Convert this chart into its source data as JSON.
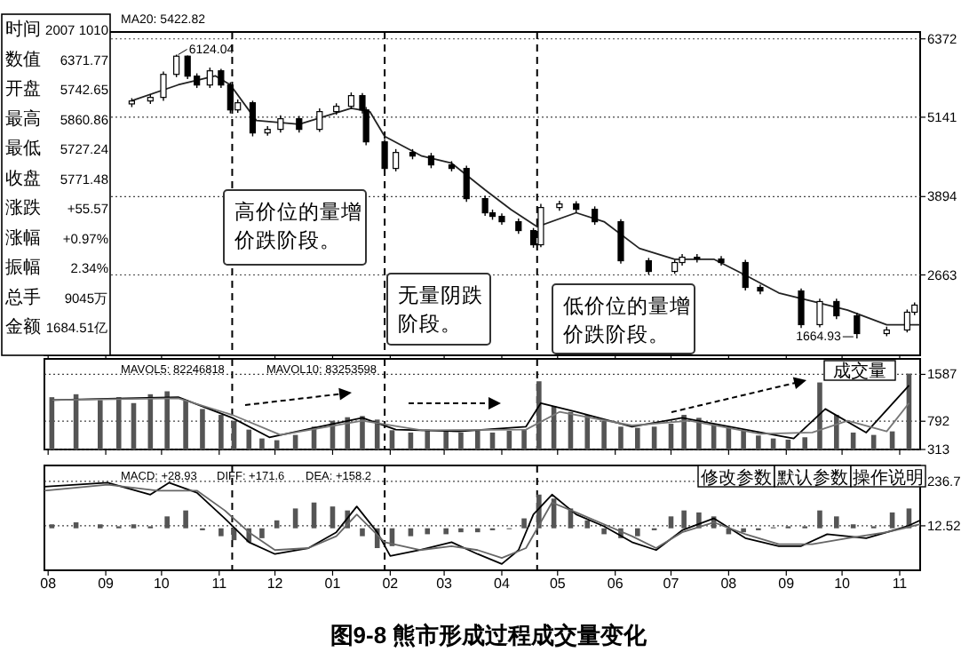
{
  "chart_data": [
    {
      "type": "candlestick",
      "tick_labels": "y",
      "grid": "y",
      "xlim": [
        "2007-07-30",
        "2008-11-12"
      ],
      "ylim": [
        1400,
        6480
      ],
      "yticks": [
        2663,
        3894,
        5141,
        6372
      ],
      "xticks": [
        {
          "value": "2007-08",
          "label": "08"
        },
        {
          "value": "2007-09",
          "label": "09"
        },
        {
          "value": "2007-10",
          "label": "10"
        },
        {
          "value": "2007-11",
          "label": "11"
        },
        {
          "value": "2007-12",
          "label": "12"
        },
        {
          "value": "2008-01",
          "label": "01"
        },
        {
          "value": "2008-02",
          "label": "02"
        },
        {
          "value": "2008-03",
          "label": "03"
        },
        {
          "value": "2008-04",
          "label": "04"
        },
        {
          "value": "2008-05",
          "label": "05"
        },
        {
          "value": "2008-06",
          "label": "06"
        },
        {
          "value": "2008-07",
          "label": "07"
        },
        {
          "value": "2008-08",
          "label": "08"
        },
        {
          "value": "2008-09",
          "label": "09"
        },
        {
          "value": "2008-10",
          "label": "10"
        },
        {
          "value": "2008-11",
          "label": "11"
        }
      ],
      "x": [
        "2007-09-15",
        "2007-09-25",
        "2007-10-02",
        "2007-10-09",
        "2007-10-15",
        "2007-10-20",
        "2007-10-27",
        "2007-11-02",
        "2007-11-07",
        "2007-11-11",
        "2007-11-19",
        "2007-11-27",
        "2007-12-04",
        "2007-12-14",
        "2007-12-25",
        "2008-01-03",
        "2008-01-11",
        "2008-01-17",
        "2008-01-19",
        "2008-01-29",
        "2008-02-04",
        "2008-02-13",
        "2008-02-23",
        "2008-03-05",
        "2008-03-13",
        "2008-03-23",
        "2008-03-27",
        "2008-04-01",
        "2008-04-10",
        "2008-04-18",
        "2008-04-22",
        "2008-05-02",
        "2008-05-11",
        "2008-05-21",
        "2008-06-04",
        "2008-06-19",
        "2008-07-03",
        "2008-07-07",
        "2008-07-15",
        "2008-07-28",
        "2008-08-10",
        "2008-08-18",
        "2008-09-09",
        "2008-09-19",
        "2008-09-28",
        "2008-10-09",
        "2008-10-25",
        "2008-11-05",
        "2008-11-09"
      ],
      "ohlc": [
        [
          5350,
          5440,
          5300,
          5396
        ],
        [
          5396,
          5500,
          5350,
          5452
        ],
        [
          5452,
          5860,
          5400,
          5814
        ],
        [
          5814,
          6124,
          5770,
          6100
        ],
        [
          6100,
          6110,
          5740,
          5786
        ],
        [
          5786,
          5830,
          5600,
          5647
        ],
        [
          5647,
          5920,
          5600,
          5870
        ],
        [
          5870,
          5900,
          5600,
          5647
        ],
        [
          5647,
          5690,
          5200,
          5256
        ],
        [
          5256,
          5420,
          5210,
          5368
        ],
        [
          5368,
          5400,
          4840,
          4894
        ],
        [
          4894,
          5000,
          4850,
          4950
        ],
        [
          4950,
          5170,
          4900,
          5117
        ],
        [
          5117,
          5160,
          4900,
          4950
        ],
        [
          4950,
          5280,
          4910,
          5229
        ],
        [
          5229,
          5360,
          5180,
          5312
        ],
        [
          5312,
          5530,
          5270,
          5480
        ],
        [
          5480,
          5522,
          5200,
          5256
        ],
        [
          5256,
          5300,
          4700,
          4754
        ],
        [
          4754,
          4800,
          4280,
          4336
        ],
        [
          4336,
          4640,
          4290,
          4587
        ],
        [
          4587,
          4640,
          4480,
          4531
        ],
        [
          4531,
          4580,
          4340,
          4392
        ],
        [
          4392,
          4450,
          4290,
          4336
        ],
        [
          4336,
          4380,
          3810,
          3862
        ],
        [
          3862,
          3910,
          3590,
          3639
        ],
        [
          3639,
          3690,
          3530,
          3583
        ],
        [
          3583,
          3630,
          3450,
          3499
        ],
        [
          3499,
          3550,
          3310,
          3360
        ],
        [
          3360,
          3400,
          3090,
          3137
        ],
        [
          3137,
          3780,
          3100,
          3722
        ],
        [
          3722,
          3830,
          3670,
          3778
        ],
        [
          3778,
          3820,
          3640,
          3694
        ],
        [
          3694,
          3740,
          3450,
          3499
        ],
        [
          3499,
          3540,
          2840,
          2886
        ],
        [
          2886,
          2930,
          2670,
          2718
        ],
        [
          2718,
          2900,
          2680,
          2858
        ],
        [
          2858,
          2990,
          2810,
          2941
        ],
        [
          2941,
          2990,
          2860,
          2913
        ],
        [
          2913,
          2960,
          2810,
          2858
        ],
        [
          2858,
          2900,
          2420,
          2467
        ],
        [
          2467,
          2510,
          2360,
          2411
        ],
        [
          2411,
          2450,
          1830,
          1882
        ],
        [
          1882,
          2290,
          1840,
          2245
        ],
        [
          2245,
          2290,
          1970,
          2021
        ],
        [
          2021,
          2070,
          1664,
          1742
        ],
        [
          1742,
          1850,
          1700,
          1798
        ],
        [
          1798,
          2120,
          1760,
          2077
        ],
        [
          2077,
          2230,
          2030,
          2189
        ]
      ],
      "series": [
        {
          "type": "line",
          "color": "#222222",
          "x": [
            "2007-09-15",
            "2007-10-10",
            "2007-10-30",
            "2007-11-07",
            "2007-11-21",
            "2007-12-14",
            "2008-01-11",
            "2008-01-21",
            "2008-01-29",
            "2008-02-18",
            "2008-03-05",
            "2008-03-23",
            "2008-04-06",
            "2008-04-20",
            "2008-05-11",
            "2008-05-26",
            "2008-06-14",
            "2008-07-03",
            "2008-07-24",
            "2008-08-10",
            "2008-08-28",
            "2008-09-15",
            "2008-10-04",
            "2008-10-25",
            "2008-11-12"
          ],
          "values": [
            5400,
            5650,
            5790,
            5650,
            5090,
            5030,
            5280,
            5230,
            4840,
            4530,
            4420,
            4000,
            3690,
            3420,
            3640,
            3500,
            3080,
            2910,
            2910,
            2660,
            2380,
            2250,
            2110,
            1880,
            1880
          ]
        }
      ],
      "ref_lines": [
        {
          "axis": "x",
          "value": "2007-11-08",
          "line_style": "dashed"
        },
        {
          "axis": "x",
          "value": "2008-01-29",
          "line_style": "dashed"
        },
        {
          "axis": "x",
          "value": "2008-04-20",
          "line_style": "dashed"
        }
      ],
      "annotations": [
        "MA20: 5422.82",
        "高价位的量增价跌阶段。",
        "无量阴跌阶段。",
        "低价位的量增价跌阶段。",
        {
          "text": "6124.04",
          "x": "2007-10-09",
          "y": 6124
        },
        {
          "text": "1664.93",
          "x": "2008-10-09",
          "y": 1664
        }
      ]
    },
    {
      "type": "bar",
      "tick_labels": "y",
      "grid": "y",
      "xlim": [
        "2007-07-30",
        "2008-11-12"
      ],
      "ylim": [
        313,
        1850
      ],
      "yticks": [
        313,
        792,
        1587
      ],
      "color": "#555555",
      "xticks": [
        {
          "value": "2007-08",
          "label": "08"
        },
        {
          "value": "2007-09",
          "label": "09"
        },
        {
          "value": "2007-10",
          "label": "10"
        },
        {
          "value": "2007-11",
          "label": "11"
        },
        {
          "value": "2007-12",
          "label": "12"
        },
        {
          "value": "2008-01",
          "label": "01"
        },
        {
          "value": "2008-02",
          "label": "02"
        },
        {
          "value": "2008-03",
          "label": "03"
        },
        {
          "value": "2008-04",
          "label": "04"
        },
        {
          "value": "2008-05",
          "label": "05"
        },
        {
          "value": "2008-06",
          "label": "06"
        },
        {
          "value": "2008-07",
          "label": "07"
        },
        {
          "value": "2008-08",
          "label": "08"
        },
        {
          "value": "2008-09",
          "label": "09"
        },
        {
          "value": "2008-10",
          "label": "10"
        },
        {
          "value": "2008-11",
          "label": "11"
        }
      ],
      "x": [
        "2007-08-03",
        "2007-08-16",
        "2007-08-29",
        "2007-09-08",
        "2007-09-16",
        "2007-09-25",
        "2007-10-04",
        "2007-10-14",
        "2007-10-23",
        "2007-11-02",
        "2007-11-09",
        "2007-11-17",
        "2007-11-24",
        "2007-12-02",
        "2007-12-12",
        "2007-12-22",
        "2008-01-01",
        "2008-01-09",
        "2008-01-17",
        "2008-01-25",
        "2008-02-02",
        "2008-02-12",
        "2008-02-21",
        "2008-03-02",
        "2008-03-10",
        "2008-03-19",
        "2008-03-27",
        "2008-04-05",
        "2008-04-13",
        "2008-04-21",
        "2008-04-29",
        "2008-05-08",
        "2008-05-17",
        "2008-05-26",
        "2008-06-04",
        "2008-06-13",
        "2008-06-22",
        "2008-07-01",
        "2008-07-08",
        "2008-07-16",
        "2008-07-24",
        "2008-08-01",
        "2008-08-09",
        "2008-08-17",
        "2008-08-25",
        "2008-09-02",
        "2008-09-11",
        "2008-09-19",
        "2008-09-28",
        "2008-10-07",
        "2008-10-18",
        "2008-10-28",
        "2008-11-06"
      ],
      "values": [
        1200,
        1250,
        1150,
        1200,
        1100,
        1250,
        1300,
        1150,
        1000,
        900,
        800,
        650,
        500,
        470,
        560,
        700,
        800,
        860,
        880,
        820,
        640,
        600,
        650,
        620,
        600,
        640,
        600,
        630,
        650,
        1470,
        1050,
        950,
        900,
        800,
        700,
        680,
        700,
        750,
        900,
        850,
        750,
        700,
        650,
        550,
        500,
        480,
        520,
        1450,
        900,
        600,
        560,
        620,
        1600
      ],
      "series": [
        {
          "type": "line",
          "color": "#000000",
          "x": [
            "2007-08-03",
            "2007-09-12",
            "2007-10-10",
            "2007-11-08",
            "2007-11-28",
            "2007-12-25",
            "2008-01-17",
            "2008-02-04",
            "2008-03-09",
            "2008-04-14",
            "2008-04-22",
            "2008-05-11",
            "2008-06-10",
            "2008-07-07",
            "2008-08-10",
            "2008-09-05",
            "2008-09-22",
            "2008-10-14",
            "2008-11-06"
          ],
          "values": [
            1150,
            1180,
            1200,
            850,
            520,
            700,
            850,
            650,
            620,
            700,
            1100,
            950,
            700,
            850,
            650,
            500,
            1000,
            600,
            1400
          ]
        },
        {
          "type": "line",
          "color": "#777777",
          "x": [
            "2007-08-03",
            "2007-10-10",
            "2007-11-08",
            "2007-12-04",
            "2008-01-17",
            "2008-02-18",
            "2008-04-14",
            "2008-05-02",
            "2008-06-10",
            "2008-07-11",
            "2008-08-18",
            "2008-09-15",
            "2008-10-04",
            "2008-10-25",
            "2008-11-06"
          ],
          "values": [
            1150,
            1180,
            900,
            560,
            800,
            640,
            650,
            950,
            720,
            800,
            580,
            600,
            800,
            620,
            1100
          ]
        }
      ],
      "ref_lines": [
        {
          "axis": "x",
          "value": "2007-11-08",
          "line_style": "dashed"
        },
        {
          "axis": "x",
          "value": "2008-01-29",
          "line_style": "dashed"
        },
        {
          "axis": "x",
          "value": "2008-04-20",
          "line_style": "dashed"
        }
      ],
      "annotations": [
        "MAVOL5: 82246818",
        "MAVOL10: 83253598",
        "成交量"
      ]
    },
    {
      "type": "bar",
      "grid": "y",
      "xlim": [
        "2007-07-30",
        "2008-11-12"
      ],
      "ylim": [
        -212,
        317
      ],
      "yticks": [
        12.52,
        236.7
      ],
      "color": "#555555",
      "xticks": [
        {
          "value": "2007-08",
          "label": "08"
        },
        {
          "value": "2007-09",
          "label": "09"
        },
        {
          "value": "2007-10",
          "label": "10"
        },
        {
          "value": "2007-11",
          "label": "11"
        },
        {
          "value": "2007-12",
          "label": "12"
        },
        {
          "value": "2008-01",
          "label": "01"
        },
        {
          "value": "2008-02",
          "label": "02"
        },
        {
          "value": "2008-03",
          "label": "03"
        },
        {
          "value": "2008-04",
          "label": "04"
        },
        {
          "value": "2008-05",
          "label": "05"
        },
        {
          "value": "2008-06",
          "label": "06"
        },
        {
          "value": "2008-07",
          "label": "07"
        },
        {
          "value": "2008-08",
          "label": "08"
        },
        {
          "value": "2008-09",
          "label": "09"
        },
        {
          "value": "2008-10",
          "label": "10"
        },
        {
          "value": "2008-11",
          "label": "11"
        }
      ],
      "x": [
        "2007-08-03",
        "2007-08-16",
        "2007-08-29",
        "2007-09-08",
        "2007-09-16",
        "2007-09-25",
        "2007-10-04",
        "2007-10-14",
        "2007-10-23",
        "2007-11-02",
        "2007-11-09",
        "2007-11-17",
        "2007-11-24",
        "2007-12-02",
        "2007-12-12",
        "2007-12-22",
        "2008-01-01",
        "2008-01-09",
        "2008-01-17",
        "2008-01-25",
        "2008-02-02",
        "2008-02-12",
        "2008-02-21",
        "2008-03-02",
        "2008-03-10",
        "2008-03-19",
        "2008-03-27",
        "2008-04-05",
        "2008-04-13",
        "2008-04-21",
        "2008-04-29",
        "2008-05-08",
        "2008-05-17",
        "2008-05-26",
        "2008-06-04",
        "2008-06-13",
        "2008-06-22",
        "2008-07-01",
        "2008-07-08",
        "2008-07-16",
        "2008-07-24",
        "2008-08-01",
        "2008-08-09",
        "2008-08-17",
        "2008-08-25",
        "2008-09-02",
        "2008-09-11",
        "2008-09-19",
        "2008-09-28",
        "2008-10-07",
        "2008-10-18",
        "2008-10-28",
        "2008-11-06"
      ],
      "values": [
        20,
        30,
        20,
        10,
        20,
        10,
        60,
        90,
        -10,
        -40,
        -60,
        -70,
        -50,
        40,
        100,
        130,
        110,
        90,
        -40,
        -100,
        -90,
        -40,
        -30,
        -30,
        -20,
        -20,
        -10,
        0,
        50,
        170,
        150,
        100,
        40,
        -30,
        -50,
        -40,
        -10,
        60,
        90,
        80,
        60,
        -30,
        -20,
        -10,
        5,
        10,
        10,
        90,
        60,
        20,
        10,
        80,
        100
      ],
      "series": [
        {
          "type": "line",
          "color": "#000000",
          "x": [
            "2007-07-30",
            "2007-09-02",
            "2007-09-25",
            "2007-10-05",
            "2007-10-20",
            "2007-11-04",
            "2007-11-17",
            "2007-12-01",
            "2007-12-19",
            "2008-01-03",
            "2008-01-14",
            "2008-01-25",
            "2008-02-01",
            "2008-02-17",
            "2008-03-05",
            "2008-03-19",
            "2008-04-01",
            "2008-04-10",
            "2008-04-18",
            "2008-04-28",
            "2008-05-11",
            "2008-05-26",
            "2008-06-10",
            "2008-06-23",
            "2008-07-07",
            "2008-07-24",
            "2008-08-10",
            "2008-08-28",
            "2008-09-09",
            "2008-09-23",
            "2008-10-14",
            "2008-11-05",
            "2008-11-12"
          ],
          "values": [
            210,
            230,
            170,
            230,
            180,
            50,
            -70,
            -130,
            -100,
            -20,
            110,
            -20,
            -140,
            -110,
            -70,
            -130,
            -180,
            -110,
            70,
            170,
            70,
            10,
            -70,
            -110,
            -10,
            50,
            -50,
            -90,
            -90,
            -30,
            -50,
            10,
            40
          ]
        },
        {
          "type": "line",
          "color": "#666666",
          "x": [
            "2007-07-30",
            "2007-09-02",
            "2007-09-29",
            "2007-10-20",
            "2007-11-04",
            "2007-11-17",
            "2007-12-01",
            "2007-12-19",
            "2008-01-03",
            "2008-01-14",
            "2008-01-29",
            "2008-02-17",
            "2008-03-05",
            "2008-03-19",
            "2008-04-01",
            "2008-04-14",
            "2008-04-28",
            "2008-05-11",
            "2008-05-26",
            "2008-06-10",
            "2008-06-23",
            "2008-07-07",
            "2008-07-24",
            "2008-08-10",
            "2008-08-28",
            "2008-09-15",
            "2008-10-04",
            "2008-10-25",
            "2008-11-12"
          ],
          "values": [
            190,
            220,
            190,
            190,
            90,
            -20,
            -110,
            -100,
            -40,
            70,
            -70,
            -110,
            -90,
            -110,
            -150,
            -100,
            130,
            80,
            20,
            -40,
            -100,
            -20,
            30,
            -30,
            -80,
            -80,
            -50,
            -20,
            20
          ]
        }
      ],
      "ref_lines": [
        {
          "axis": "x",
          "value": "2007-11-08",
          "line_style": "dashed"
        },
        {
          "axis": "x",
          "value": "2008-01-29",
          "line_style": "dashed"
        },
        {
          "axis": "x",
          "value": "2008-04-20",
          "line_style": "dashed"
        }
      ],
      "annotations": [
        "MACD: +28.93",
        "DIFF: +171.6",
        "DEA: +158.2",
        "修改参数",
        "默认参数",
        "操作说明"
      ]
    },
    {
      "type": "other",
      "title": "图9-8 熊市形成过程成交量变化",
      "annotations": [
        "时间",
        "2007 1010",
        "数值",
        "6371.77",
        "开盘",
        "5742.65",
        "最高",
        "5860.86",
        "最低",
        "5727.24",
        "收盘",
        "5771.48",
        "涨跌",
        "+55.57",
        "涨幅",
        "+0.97%",
        "振幅",
        "2.34%",
        "总手",
        "9045万",
        "金额",
        "1684.51亿"
      ]
    }
  ]
}
